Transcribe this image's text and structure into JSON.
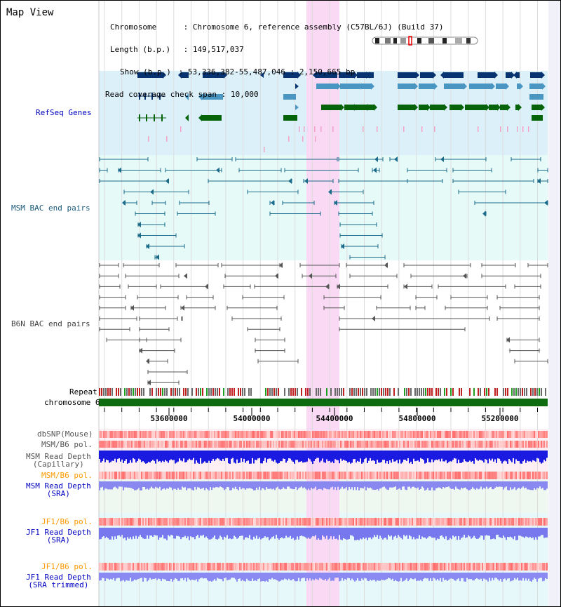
{
  "view": {
    "title": "Map View"
  },
  "info": {
    "chromosome_label": "Chromosome",
    "chromosome_value": "Chromosome 6, reference assembly (C57BL/6J) (Build 37)",
    "length_label": "Length (b.p.)",
    "length_value": "149,517,037",
    "show_label": "Show (b.p.)",
    "show_value": "53,336,382-55,487,046 : 2,150,665 bp",
    "coverage_label": "Read coverage check span",
    "coverage_value": "10,000"
  },
  "tracks": {
    "refseq": "RefSeq Genes",
    "msm_bac": "MSM BAC end pairs",
    "b6n_bac": "B6N BAC end pairs",
    "repeat": "Repeat",
    "chromosome": "chromosome 6",
    "dbsnp": "dbSNP(Mouse)",
    "msm_b6_pol": "MSM/B6 pol.",
    "msm_read_depth_cap_1": "MSM Read Depth",
    "msm_read_depth_cap_2": "(Capillary)",
    "msm_b6_pol_2": "MSM/B6 pol.",
    "msm_read_depth_sra_1": "MSM Read Depth",
    "msm_read_depth_sra_2": "(SRA)",
    "jf1_b6_pol": "JF1/B6 pol.",
    "jf1_read_depth_sra_1": "JF1 Read Depth",
    "jf1_read_depth_sra_2": "(SRA)",
    "jf1_b6_pol_2": "JF1/B6 pol.",
    "jf1_read_depth_trim_1": "JF1 Read Depth",
    "jf1_read_depth_trim_2": "(SRA trimmed)"
  },
  "axis": {
    "ticks": [
      "53600000",
      "54000000",
      "54400000",
      "54800000",
      "55200000"
    ]
  },
  "colors": {
    "refseq_bg": "#dcf0fa",
    "msm_bg": "#e6faf8",
    "highlight": "#f9d9f3",
    "refseq_dark": "#073470",
    "refseq_mid": "#4a96c2",
    "refseq_green": "#06630a",
    "refseq_pink": "#f3a4c4",
    "msm_line": "#1a6a8a",
    "b6n_line": "#555555",
    "chromosome": "#0e6b10",
    "label_blue": "#0000c0",
    "label_orange": "#ff9900",
    "label_teal": "#1a5a7a"
  }
}
